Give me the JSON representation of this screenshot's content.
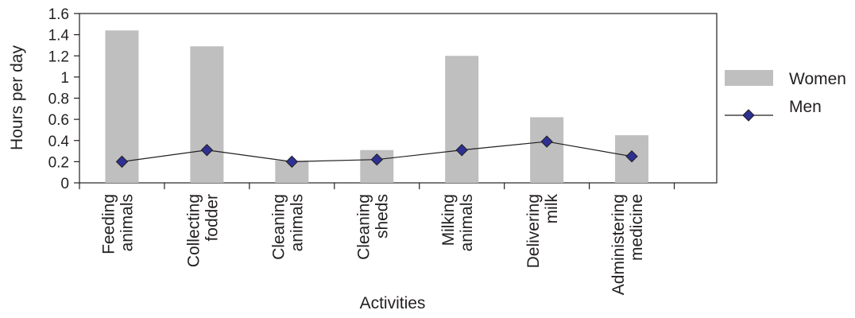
{
  "chart_data": {
    "type": "bar",
    "categories": [
      [
        "Feeding",
        "animals"
      ],
      [
        "Collecting",
        "fodder"
      ],
      [
        "Cleaning",
        "animals"
      ],
      [
        "Cleaning",
        "sheds"
      ],
      [
        "Milking",
        "animals"
      ],
      [
        "Delivering",
        "milk"
      ],
      [
        "Administering",
        "medicine"
      ]
    ],
    "series": [
      {
        "name": "Women",
        "kind": "bar",
        "color": "#bfbfbf",
        "values": [
          1.44,
          1.29,
          0.21,
          0.31,
          1.2,
          0.62,
          0.45
        ]
      },
      {
        "name": "Men",
        "kind": "line",
        "color": "#2e3192",
        "values": [
          0.2,
          0.31,
          0.2,
          0.22,
          0.31,
          0.39,
          0.25
        ]
      }
    ],
    "xlabel": "Activities",
    "ylabel": "Hours per day",
    "ylim": [
      0,
      1.6
    ],
    "yticks": [
      "0",
      "0.2",
      "0.4",
      "0.6",
      "0.8",
      "1",
      "1.2",
      "1.4",
      "1.6"
    ],
    "grid": false,
    "legend_position": "right"
  }
}
